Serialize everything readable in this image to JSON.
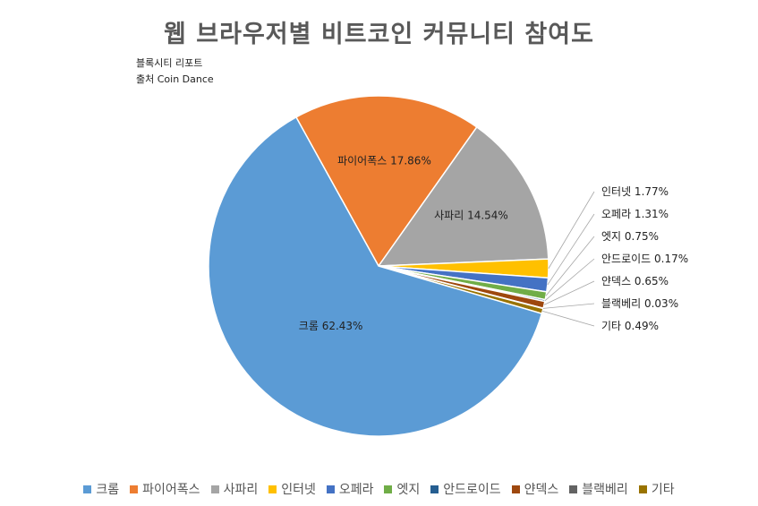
{
  "header": {
    "source_lines": [
      "블록시티 리포트",
      "출처 Coin Dance"
    ]
  },
  "chart_data": {
    "type": "pie",
    "title": "웹 브라우저별 비트코인 커뮤니티 참여도",
    "legend_position": "bottom",
    "unit": "%",
    "categories": [
      "크롬",
      "파이어폭스",
      "사파리",
      "인터넷",
      "오페라",
      "엣지",
      "안드로이드",
      "얀덱스",
      "블랙베리",
      "기타"
    ],
    "values": [
      62.43,
      17.86,
      14.54,
      1.77,
      1.31,
      0.75,
      0.17,
      0.65,
      0.03,
      0.49
    ],
    "colors": [
      "#5B9BD5",
      "#ED7D31",
      "#A5A5A5",
      "#FFC000",
      "#4472C4",
      "#70AD47",
      "#255E91",
      "#9E480E",
      "#636363",
      "#997300"
    ]
  }
}
